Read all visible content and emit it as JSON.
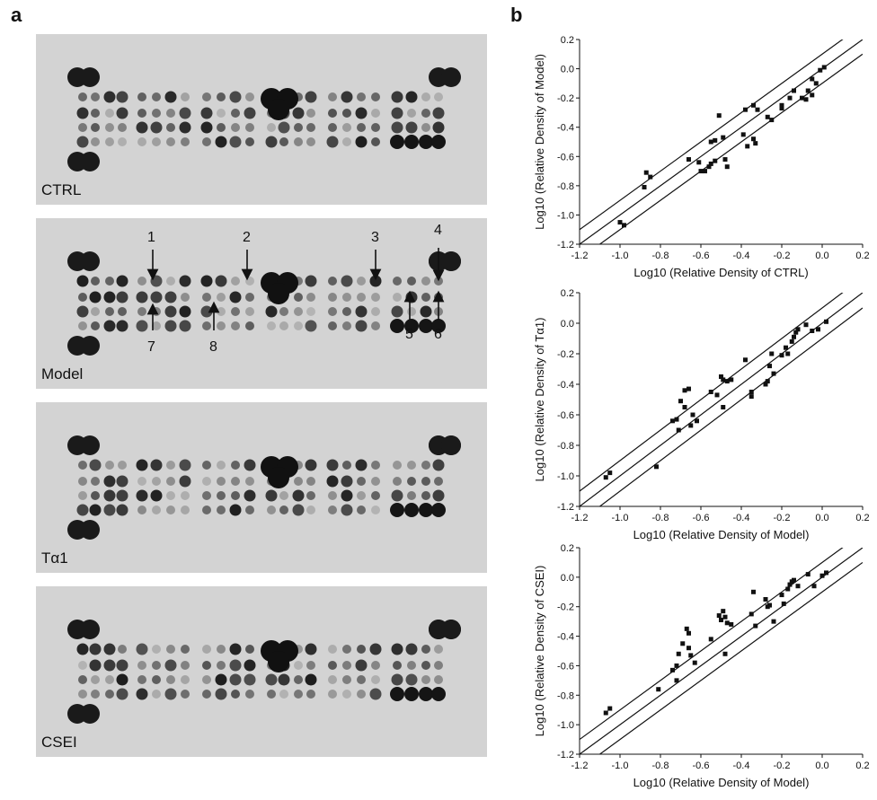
{
  "panels": {
    "a": "a",
    "b": "b"
  },
  "blots": [
    {
      "label": "CTRL"
    },
    {
      "label": "Model"
    },
    {
      "label": "Tα1"
    },
    {
      "label": "CSEI"
    }
  ],
  "arrows": {
    "top": [
      "1",
      "2",
      "3",
      "4"
    ],
    "bottom": [
      "7",
      "8",
      "5",
      "6"
    ]
  },
  "chart_data": [
    {
      "type": "scatter",
      "xlabel": "Log10 (Relative Density of CTRL)",
      "ylabel": "Log10 (Relative Density of Model)",
      "xlim": [
        -1.2,
        0.2
      ],
      "ylim": [
        -1.2,
        0.2
      ],
      "xticks": [
        "-1.2",
        "-1.0",
        "-0.8",
        "-0.6",
        "-0.4",
        "-0.2",
        "0.0",
        "0.2"
      ],
      "yticks": [
        "-1.2",
        "-1.0",
        "-0.8",
        "-0.6",
        "-0.4",
        "-0.2",
        "0.0",
        "0.2"
      ],
      "reference_lines": [
        {
          "intercept": 0.1
        },
        {
          "intercept": 0.0
        },
        {
          "intercept": -0.1
        }
      ],
      "points": [
        [
          -1.0,
          -1.05
        ],
        [
          -0.98,
          -1.07
        ],
        [
          -0.87,
          -0.71
        ],
        [
          -0.85,
          -0.74
        ],
        [
          -0.88,
          -0.81
        ],
        [
          -0.66,
          -0.62
        ],
        [
          -0.61,
          -0.64
        ],
        [
          -0.6,
          -0.7
        ],
        [
          -0.58,
          -0.7
        ],
        [
          -0.56,
          -0.67
        ],
        [
          -0.55,
          -0.65
        ],
        [
          -0.53,
          -0.63
        ],
        [
          -0.55,
          -0.5
        ],
        [
          -0.53,
          -0.49
        ],
        [
          -0.51,
          -0.32
        ],
        [
          -0.49,
          -0.47
        ],
        [
          -0.48,
          -0.62
        ],
        [
          -0.47,
          -0.67
        ],
        [
          -0.39,
          -0.45
        ],
        [
          -0.37,
          -0.53
        ],
        [
          -0.34,
          -0.48
        ],
        [
          -0.33,
          -0.51
        ],
        [
          -0.38,
          -0.28
        ],
        [
          -0.34,
          -0.25
        ],
        [
          -0.32,
          -0.28
        ],
        [
          -0.27,
          -0.33
        ],
        [
          -0.25,
          -0.35
        ],
        [
          -0.2,
          -0.27
        ],
        [
          -0.2,
          -0.25
        ],
        [
          -0.16,
          -0.2
        ],
        [
          -0.14,
          -0.15
        ],
        [
          -0.1,
          -0.2
        ],
        [
          -0.08,
          -0.21
        ],
        [
          -0.07,
          -0.15
        ],
        [
          -0.05,
          -0.18
        ],
        [
          -0.05,
          -0.07
        ],
        [
          -0.03,
          -0.1
        ],
        [
          -0.01,
          -0.01
        ],
        [
          0.01,
          0.01
        ]
      ]
    },
    {
      "type": "scatter",
      "xlabel": "Log10 (Relative Density of Model)",
      "ylabel": "Log10 (Relative Density of Tα1)",
      "xlim": [
        -1.2,
        0.2
      ],
      "ylim": [
        -1.2,
        0.2
      ],
      "xticks": [
        "-1.2",
        "-1.0",
        "-0.8",
        "-0.6",
        "-0.4",
        "-0.2",
        "0.0",
        "0.2"
      ],
      "yticks": [
        "-1.2",
        "-1.0",
        "-0.8",
        "-0.6",
        "-0.4",
        "-0.2",
        "0.0",
        "0.2"
      ],
      "reference_lines": [
        {
          "intercept": 0.1
        },
        {
          "intercept": 0.0
        },
        {
          "intercept": -0.1
        }
      ],
      "points": [
        [
          -1.07,
          -1.01
        ],
        [
          -1.05,
          -0.98
        ],
        [
          -0.82,
          -0.94
        ],
        [
          -0.74,
          -0.64
        ],
        [
          -0.72,
          -0.63
        ],
        [
          -0.71,
          -0.7
        ],
        [
          -0.7,
          -0.51
        ],
        [
          -0.68,
          -0.55
        ],
        [
          -0.68,
          -0.44
        ],
        [
          -0.66,
          -0.43
        ],
        [
          -0.65,
          -0.67
        ],
        [
          -0.64,
          -0.6
        ],
        [
          -0.62,
          -0.64
        ],
        [
          -0.55,
          -0.45
        ],
        [
          -0.52,
          -0.47
        ],
        [
          -0.5,
          -0.35
        ],
        [
          -0.49,
          -0.37
        ],
        [
          -0.49,
          -0.55
        ],
        [
          -0.47,
          -0.38
        ],
        [
          -0.45,
          -0.37
        ],
        [
          -0.38,
          -0.24
        ],
        [
          -0.35,
          -0.45
        ],
        [
          -0.35,
          -0.48
        ],
        [
          -0.28,
          -0.4
        ],
        [
          -0.27,
          -0.38
        ],
        [
          -0.26,
          -0.28
        ],
        [
          -0.25,
          -0.2
        ],
        [
          -0.24,
          -0.33
        ],
        [
          -0.2,
          -0.21
        ],
        [
          -0.18,
          -0.16
        ],
        [
          -0.17,
          -0.2
        ],
        [
          -0.15,
          -0.12
        ],
        [
          -0.14,
          -0.09
        ],
        [
          -0.13,
          -0.06
        ],
        [
          -0.12,
          -0.04
        ],
        [
          -0.08,
          -0.01
        ],
        [
          -0.05,
          -0.05
        ],
        [
          -0.02,
          -0.04
        ],
        [
          0.02,
          0.01
        ]
      ]
    },
    {
      "type": "scatter",
      "xlabel": "Log10 (Relative Density of Model)",
      "ylabel": "Log10 (Relative Density of CSEI)",
      "xlim": [
        -1.2,
        0.2
      ],
      "ylim": [
        -1.2,
        0.2
      ],
      "xticks": [
        "-1.2",
        "-1.0",
        "-0.8",
        "-0.6",
        "-0.4",
        "-0.2",
        "0.0",
        "0.2"
      ],
      "yticks": [
        "-1.2",
        "-1.0",
        "-0.8",
        "-0.6",
        "-0.4",
        "-0.2",
        "0.0",
        "0.2"
      ],
      "reference_lines": [
        {
          "intercept": 0.1
        },
        {
          "intercept": 0.0
        },
        {
          "intercept": -0.1
        }
      ],
      "points": [
        [
          -1.07,
          -0.92
        ],
        [
          -1.05,
          -0.89
        ],
        [
          -0.81,
          -0.76
        ],
        [
          -0.74,
          -0.63
        ],
        [
          -0.72,
          -0.6
        ],
        [
          -0.72,
          -0.7
        ],
        [
          -0.71,
          -0.52
        ],
        [
          -0.69,
          -0.45
        ],
        [
          -0.67,
          -0.35
        ],
        [
          -0.66,
          -0.38
        ],
        [
          -0.66,
          -0.48
        ],
        [
          -0.65,
          -0.53
        ],
        [
          -0.63,
          -0.58
        ],
        [
          -0.55,
          -0.42
        ],
        [
          -0.51,
          -0.26
        ],
        [
          -0.5,
          -0.29
        ],
        [
          -0.49,
          -0.23
        ],
        [
          -0.48,
          -0.27
        ],
        [
          -0.48,
          -0.52
        ],
        [
          -0.47,
          -0.31
        ],
        [
          -0.45,
          -0.32
        ],
        [
          -0.35,
          -0.25
        ],
        [
          -0.34,
          -0.1
        ],
        [
          -0.33,
          -0.33
        ],
        [
          -0.28,
          -0.15
        ],
        [
          -0.27,
          -0.2
        ],
        [
          -0.26,
          -0.19
        ],
        [
          -0.24,
          -0.3
        ],
        [
          -0.2,
          -0.12
        ],
        [
          -0.19,
          -0.18
        ],
        [
          -0.17,
          -0.08
        ],
        [
          -0.16,
          -0.05
        ],
        [
          -0.15,
          -0.03
        ],
        [
          -0.14,
          -0.02
        ],
        [
          -0.12,
          -0.06
        ],
        [
          -0.07,
          0.02
        ],
        [
          -0.04,
          -0.06
        ],
        [
          0.0,
          0.01
        ],
        [
          0.02,
          0.03
        ]
      ]
    }
  ]
}
